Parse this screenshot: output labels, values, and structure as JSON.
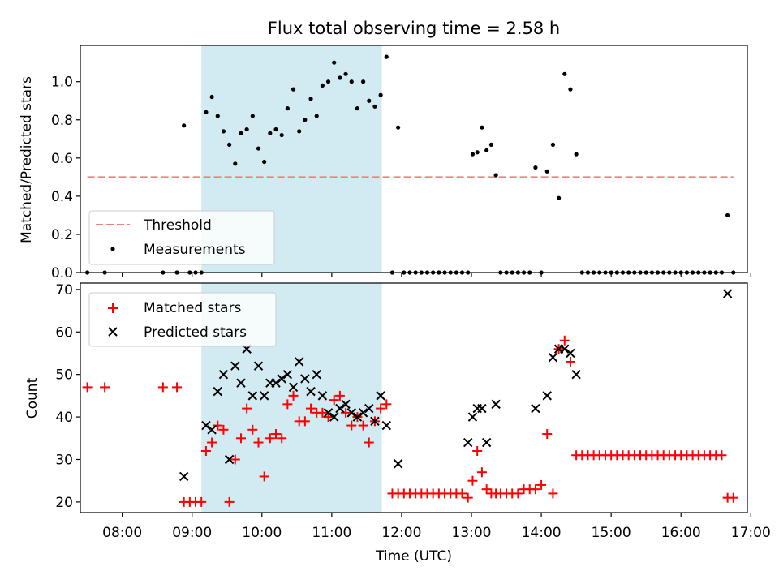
{
  "colors": {
    "shade": "#add8e6",
    "threshold": "#f08080",
    "matched": "#ff0000",
    "predicted": "#000000",
    "measurement": "#000000"
  },
  "chart_data": [
    {
      "type": "scatter",
      "title": "Flux total observing time = 2.58 h",
      "xlabel": "",
      "ylabel": "Matched/Predicted stars",
      "xlim": [
        "07:24",
        "16:57"
      ],
      "ylim": [
        0,
        1.19
      ],
      "yticks": [
        "0.0",
        "0.2",
        "0.4",
        "0.6",
        "0.8",
        "1.0"
      ],
      "shaded_span": [
        "09:08",
        "11:43"
      ],
      "legend_position": "lower-left",
      "threshold": {
        "name": "Threshold",
        "value": 0.5,
        "x_range": [
          "07:30",
          "16:45"
        ],
        "style": "dashed"
      },
      "series": [
        {
          "name": "Measurements",
          "marker": "dot",
          "points": [
            [
              "07:30",
              0
            ],
            [
              "07:45",
              0
            ],
            [
              "08:35",
              0
            ],
            [
              "08:47",
              0
            ],
            [
              "08:53",
              0.77
            ],
            [
              "08:58",
              0
            ],
            [
              "09:03",
              0
            ],
            [
              "09:08",
              0
            ],
            [
              "09:12",
              0.84
            ],
            [
              "09:17",
              0.92
            ],
            [
              "09:22",
              0.82
            ],
            [
              "09:27",
              0.74
            ],
            [
              "09:32",
              0.67
            ],
            [
              "09:37",
              0.57
            ],
            [
              "09:42",
              0.73
            ],
            [
              "09:47",
              0.75
            ],
            [
              "09:52",
              0.82
            ],
            [
              "09:57",
              0.65
            ],
            [
              "10:02",
              0.58
            ],
            [
              "10:07",
              0.73
            ],
            [
              "10:12",
              0.75
            ],
            [
              "10:17",
              0.72
            ],
            [
              "10:22",
              0.86
            ],
            [
              "10:27",
              0.96
            ],
            [
              "10:32",
              0.74
            ],
            [
              "10:37",
              0.8
            ],
            [
              "10:42",
              0.91
            ],
            [
              "10:47",
              0.82
            ],
            [
              "10:52",
              0.98
            ],
            [
              "10:57",
              1.0
            ],
            [
              "11:02",
              1.1
            ],
            [
              "11:07",
              1.02
            ],
            [
              "11:12",
              1.04
            ],
            [
              "11:17",
              1.0
            ],
            [
              "11:22",
              0.86
            ],
            [
              "11:27",
              1.0
            ],
            [
              "11:32",
              0.9
            ],
            [
              "11:37",
              0.87
            ],
            [
              "11:42",
              0.93
            ],
            [
              "11:47",
              1.13
            ],
            [
              "11:52",
              0
            ],
            [
              "11:57",
              0.76
            ],
            [
              "12:02",
              0
            ],
            [
              "12:07",
              0
            ],
            [
              "12:12",
              0
            ],
            [
              "12:17",
              0
            ],
            [
              "12:22",
              0
            ],
            [
              "12:27",
              0
            ],
            [
              "12:32",
              0
            ],
            [
              "12:37",
              0
            ],
            [
              "12:42",
              0
            ],
            [
              "12:47",
              0
            ],
            [
              "12:52",
              0
            ],
            [
              "12:57",
              0
            ],
            [
              "13:01",
              0.62
            ],
            [
              "13:05",
              0.63
            ],
            [
              "13:09",
              0.76
            ],
            [
              "13:13",
              0.64
            ],
            [
              "13:17",
              0.67
            ],
            [
              "13:21",
              0.51
            ],
            [
              "13:25",
              0
            ],
            [
              "13:30",
              0
            ],
            [
              "13:35",
              0
            ],
            [
              "13:40",
              0
            ],
            [
              "13:45",
              0
            ],
            [
              "13:50",
              0
            ],
            [
              "13:55",
              0.55
            ],
            [
              "14:00",
              0
            ],
            [
              "14:05",
              0.53
            ],
            [
              "14:10",
              0.67
            ],
            [
              "14:15",
              0.39
            ],
            [
              "14:20",
              1.04
            ],
            [
              "14:25",
              0.96
            ],
            [
              "14:30",
              0.62
            ],
            [
              "14:35",
              0
            ],
            [
              "14:40",
              0
            ],
            [
              "14:45",
              0
            ],
            [
              "14:50",
              0
            ],
            [
              "14:55",
              0
            ],
            [
              "15:00",
              0
            ],
            [
              "15:05",
              0
            ],
            [
              "15:10",
              0
            ],
            [
              "15:15",
              0
            ],
            [
              "15:20",
              0
            ],
            [
              "15:25",
              0
            ],
            [
              "15:30",
              0
            ],
            [
              "15:35",
              0
            ],
            [
              "15:40",
              0
            ],
            [
              "15:45",
              0
            ],
            [
              "15:50",
              0
            ],
            [
              "15:55",
              0
            ],
            [
              "16:00",
              0
            ],
            [
              "16:05",
              0
            ],
            [
              "16:10",
              0
            ],
            [
              "16:15",
              0
            ],
            [
              "16:20",
              0
            ],
            [
              "16:25",
              0
            ],
            [
              "16:30",
              0
            ],
            [
              "16:35",
              0
            ],
            [
              "16:40",
              0.3
            ],
            [
              "16:45",
              0
            ]
          ]
        }
      ]
    },
    {
      "type": "scatter",
      "title": "",
      "xlabel": "Time (UTC)",
      "ylabel": "Count",
      "xlim": [
        "07:24",
        "16:57"
      ],
      "ylim": [
        17.5,
        71.5
      ],
      "xticks": [
        "08:00",
        "09:00",
        "10:00",
        "11:00",
        "12:00",
        "13:00",
        "14:00",
        "15:00",
        "16:00",
        "17:00"
      ],
      "yticks": [
        "20",
        "30",
        "40",
        "50",
        "60",
        "70"
      ],
      "shaded_span": [
        "09:08",
        "11:43"
      ],
      "legend_position": "upper-left",
      "series": [
        {
          "name": "Matched stars",
          "marker": "plus",
          "points": [
            [
              "07:30",
              47
            ],
            [
              "07:45",
              47
            ],
            [
              "08:35",
              47
            ],
            [
              "08:47",
              47
            ],
            [
              "08:53",
              20
            ],
            [
              "08:58",
              20
            ],
            [
              "09:03",
              20
            ],
            [
              "09:08",
              20
            ],
            [
              "09:12",
              32
            ],
            [
              "09:17",
              34
            ],
            [
              "09:22",
              38
            ],
            [
              "09:27",
              37
            ],
            [
              "09:32",
              20
            ],
            [
              "09:37",
              30
            ],
            [
              "09:42",
              35
            ],
            [
              "09:47",
              42
            ],
            [
              "09:52",
              37
            ],
            [
              "09:57",
              34
            ],
            [
              "10:02",
              26
            ],
            [
              "10:07",
              35
            ],
            [
              "10:12",
              36
            ],
            [
              "10:17",
              35
            ],
            [
              "10:22",
              43
            ],
            [
              "10:27",
              45
            ],
            [
              "10:32",
              39
            ],
            [
              "10:37",
              39
            ],
            [
              "10:42",
              42
            ],
            [
              "10:47",
              41
            ],
            [
              "10:52",
              41
            ],
            [
              "10:57",
              40
            ],
            [
              "11:02",
              44
            ],
            [
              "11:07",
              45
            ],
            [
              "11:12",
              41
            ],
            [
              "11:17",
              38
            ],
            [
              "11:22",
              40
            ],
            [
              "11:27",
              38
            ],
            [
              "11:32",
              34
            ],
            [
              "11:37",
              39
            ],
            [
              "11:42",
              42
            ],
            [
              "11:47",
              43
            ],
            [
              "11:52",
              22
            ],
            [
              "11:57",
              22
            ],
            [
              "12:02",
              22
            ],
            [
              "12:07",
              22
            ],
            [
              "12:12",
              22
            ],
            [
              "12:17",
              22
            ],
            [
              "12:22",
              22
            ],
            [
              "12:27",
              22
            ],
            [
              "12:32",
              22
            ],
            [
              "12:37",
              22
            ],
            [
              "12:42",
              22
            ],
            [
              "12:47",
              22
            ],
            [
              "12:52",
              22
            ],
            [
              "12:57",
              21
            ],
            [
              "13:01",
              25
            ],
            [
              "13:05",
              32
            ],
            [
              "13:09",
              27
            ],
            [
              "13:13",
              23
            ],
            [
              "13:17",
              22
            ],
            [
              "13:21",
              22
            ],
            [
              "13:25",
              22
            ],
            [
              "13:30",
              22
            ],
            [
              "13:35",
              22
            ],
            [
              "13:40",
              22
            ],
            [
              "13:45",
              23
            ],
            [
              "13:50",
              23
            ],
            [
              "13:55",
              23
            ],
            [
              "14:00",
              24
            ],
            [
              "14:05",
              36
            ],
            [
              "14:10",
              22
            ],
            [
              "14:15",
              56
            ],
            [
              "14:20",
              58
            ],
            [
              "14:25",
              53
            ],
            [
              "14:30",
              31
            ],
            [
              "14:35",
              31
            ],
            [
              "14:40",
              31
            ],
            [
              "14:45",
              31
            ],
            [
              "14:50",
              31
            ],
            [
              "14:55",
              31
            ],
            [
              "15:00",
              31
            ],
            [
              "15:05",
              31
            ],
            [
              "15:10",
              31
            ],
            [
              "15:15",
              31
            ],
            [
              "15:20",
              31
            ],
            [
              "15:25",
              31
            ],
            [
              "15:30",
              31
            ],
            [
              "15:35",
              31
            ],
            [
              "15:40",
              31
            ],
            [
              "15:45",
              31
            ],
            [
              "15:50",
              31
            ],
            [
              "15:55",
              31
            ],
            [
              "16:00",
              31
            ],
            [
              "16:05",
              31
            ],
            [
              "16:10",
              31
            ],
            [
              "16:15",
              31
            ],
            [
              "16:20",
              31
            ],
            [
              "16:25",
              31
            ],
            [
              "16:30",
              31
            ],
            [
              "16:35",
              31
            ],
            [
              "16:40",
              21
            ],
            [
              "16:45",
              21
            ]
          ]
        },
        {
          "name": "Predicted stars",
          "marker": "x",
          "points": [
            [
              "08:53",
              26
            ],
            [
              "09:12",
              38
            ],
            [
              "09:17",
              37
            ],
            [
              "09:22",
              46
            ],
            [
              "09:27",
              50
            ],
            [
              "09:32",
              30
            ],
            [
              "09:37",
              52
            ],
            [
              "09:42",
              48
            ],
            [
              "09:47",
              56
            ],
            [
              "09:52",
              45
            ],
            [
              "09:57",
              52
            ],
            [
              "10:02",
              45
            ],
            [
              "10:07",
              48
            ],
            [
              "10:12",
              48
            ],
            [
              "10:17",
              49
            ],
            [
              "10:22",
              50
            ],
            [
              "10:27",
              47
            ],
            [
              "10:32",
              53
            ],
            [
              "10:37",
              49
            ],
            [
              "10:42",
              46
            ],
            [
              "10:47",
              50
            ],
            [
              "10:52",
              45
            ],
            [
              "10:57",
              41
            ],
            [
              "11:02",
              40
            ],
            [
              "11:07",
              42
            ],
            [
              "11:12",
              43
            ],
            [
              "11:17",
              41
            ],
            [
              "11:22",
              40
            ],
            [
              "11:27",
              41
            ],
            [
              "11:32",
              42
            ],
            [
              "11:37",
              39
            ],
            [
              "11:42",
              45
            ],
            [
              "11:47",
              38
            ],
            [
              "11:57",
              29
            ],
            [
              "12:57",
              34
            ],
            [
              "13:01",
              40
            ],
            [
              "13:05",
              42
            ],
            [
              "13:09",
              42
            ],
            [
              "13:13",
              34
            ],
            [
              "13:21",
              43
            ],
            [
              "13:55",
              42
            ],
            [
              "14:05",
              45
            ],
            [
              "14:10",
              54
            ],
            [
              "14:15",
              56
            ],
            [
              "14:20",
              56
            ],
            [
              "14:25",
              55
            ],
            [
              "14:30",
              50
            ],
            [
              "16:40",
              69
            ]
          ]
        }
      ]
    }
  ]
}
